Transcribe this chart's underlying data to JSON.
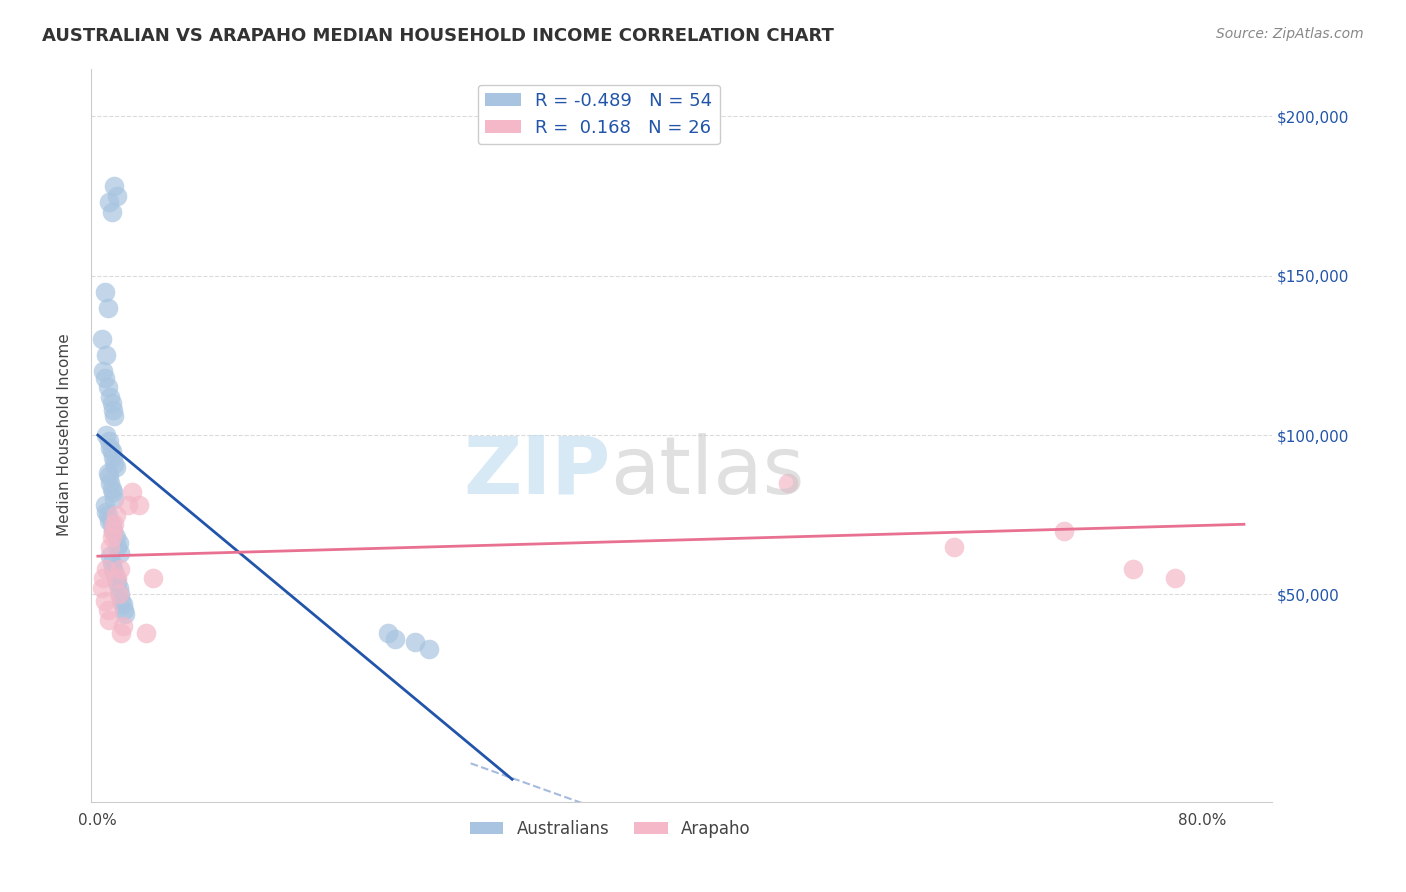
{
  "title": "AUSTRALIAN VS ARAPAHO MEDIAN HOUSEHOLD INCOME CORRELATION CHART",
  "source": "Source: ZipAtlas.com",
  "ylabel": "Median Household Income",
  "ytick_labels": [
    "$50,000",
    "$100,000",
    "$150,000",
    "$200,000"
  ],
  "ytick_values": [
    50000,
    100000,
    150000,
    200000
  ],
  "ylim": [
    -15000,
    215000
  ],
  "xlim": [
    -0.005,
    0.85
  ],
  "legend_blue_r": "-0.489",
  "legend_blue_n": "54",
  "legend_pink_r": "0.168",
  "legend_pink_n": "26",
  "blue_color": "#a8c4e0",
  "pink_color": "#f4b8c8",
  "blue_line_color": "#2255aa",
  "pink_line_color": "#e87090",
  "australians_scatter_x": [
    0.008,
    0.012,
    0.01,
    0.014,
    0.005,
    0.007,
    0.003,
    0.006,
    0.004,
    0.005,
    0.007,
    0.009,
    0.01,
    0.011,
    0.012,
    0.006,
    0.008,
    0.009,
    0.01,
    0.011,
    0.012,
    0.013,
    0.007,
    0.008,
    0.009,
    0.01,
    0.011,
    0.012,
    0.005,
    0.006,
    0.007,
    0.008,
    0.01,
    0.011,
    0.013,
    0.015,
    0.014,
    0.016,
    0.009,
    0.01,
    0.011,
    0.012,
    0.013,
    0.014,
    0.015,
    0.016,
    0.017,
    0.018,
    0.019,
    0.02,
    0.21,
    0.215,
    0.23,
    0.24
  ],
  "australians_scatter_y": [
    173000,
    178000,
    170000,
    175000,
    145000,
    140000,
    130000,
    125000,
    120000,
    118000,
    115000,
    112000,
    110000,
    108000,
    106000,
    100000,
    98000,
    96000,
    95000,
    93000,
    91000,
    90000,
    88000,
    87000,
    85000,
    83000,
    82000,
    80000,
    78000,
    76000,
    75000,
    73000,
    72000,
    70000,
    68000,
    66000,
    65000,
    63000,
    62000,
    60000,
    58000,
    57000,
    55000,
    54000,
    52000,
    50000,
    48000,
    47000,
    45000,
    44000,
    38000,
    36000,
    35000,
    33000
  ],
  "arapaho_scatter_x": [
    0.004,
    0.006,
    0.003,
    0.005,
    0.007,
    0.008,
    0.009,
    0.01,
    0.011,
    0.012,
    0.013,
    0.014,
    0.015,
    0.016,
    0.017,
    0.018,
    0.022,
    0.025,
    0.03,
    0.035,
    0.04,
    0.5,
    0.62,
    0.7,
    0.75,
    0.78
  ],
  "arapaho_scatter_y": [
    55000,
    58000,
    52000,
    48000,
    45000,
    42000,
    65000,
    68000,
    70000,
    72000,
    75000,
    55000,
    50000,
    58000,
    38000,
    40000,
    78000,
    82000,
    78000,
    38000,
    55000,
    85000,
    65000,
    70000,
    58000,
    55000
  ]
}
